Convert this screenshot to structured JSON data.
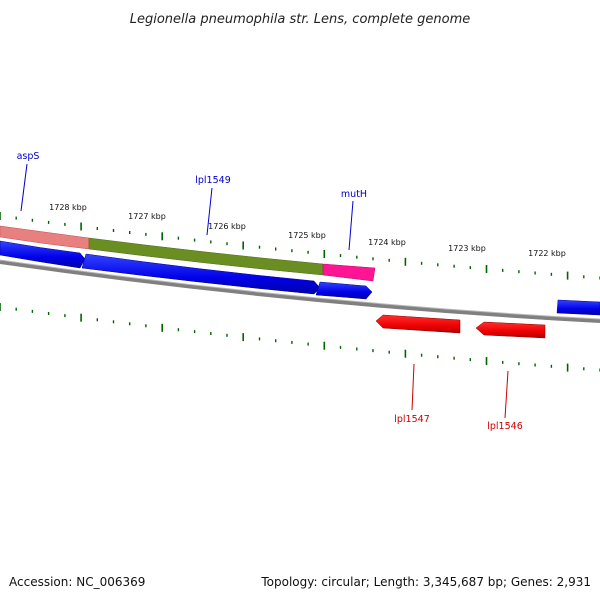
{
  "title": "Legionella pneumophila str. Lens, complete genome",
  "footer": {
    "accession": "Accession: NC_006369",
    "summary": "Topology: circular; Length: 3,345,687 bp; Genes: 2,931"
  },
  "ruler_labels": [
    "1728 kbp",
    "1727 kbp",
    "1726 kbp",
    "1725 kbp",
    "1724 kbp",
    "1723 kbp",
    "1722 kbp"
  ],
  "genes_forward": [
    {
      "name": "aspS",
      "color": "#e88080"
    },
    {
      "name": "lpl1549",
      "color": "#6b8e23"
    },
    {
      "name": "mutH",
      "color": "#ff1493"
    }
  ],
  "genes_reverse": [
    {
      "name": "lpl1547",
      "color": "#ff0000"
    },
    {
      "name": "lpl1546",
      "color": "#ff0000"
    }
  ],
  "colors": {
    "backbone": "#808080",
    "cds_forward": "#0000ff",
    "cds_reverse": "#ff0000",
    "ticks": "#006400",
    "forward_label": "#0000cc",
    "reverse_label": "#cc0000"
  }
}
